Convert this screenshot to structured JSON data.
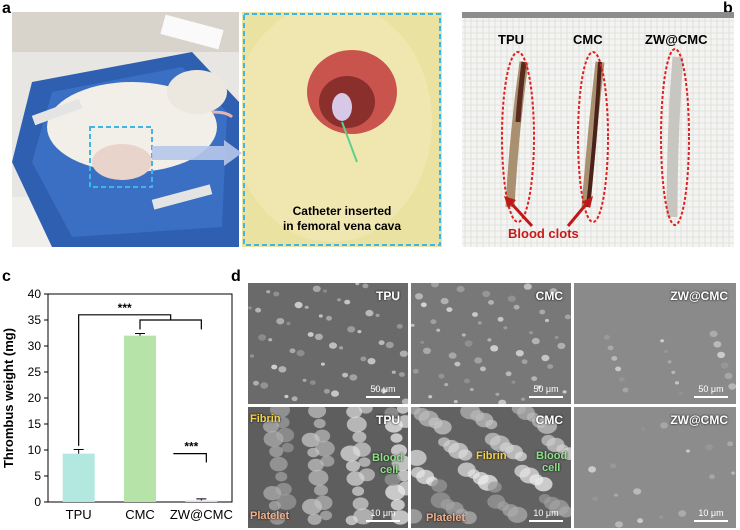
{
  "panels": {
    "a": {
      "letter": "a",
      "callout_line1": "Catheter inserted",
      "callout_line2": "in femoral vena cava"
    },
    "b": {
      "letter": "b",
      "labels": [
        "TPU",
        "CMC",
        "ZW@CMC"
      ],
      "annotation": "Blood clots"
    },
    "c": {
      "letter": "c"
    },
    "d": {
      "letter": "d",
      "tiles": [
        {
          "label": "TPU",
          "scale": "50 μm"
        },
        {
          "label": "CMC",
          "scale": "50 μm"
        },
        {
          "label": "ZW@CMC",
          "scale": "50 μm"
        },
        {
          "label": "TPU",
          "scale": "10 μm"
        },
        {
          "label": "CMC",
          "scale": "10 μm"
        },
        {
          "label": "ZW@CMC",
          "scale": "10 μm"
        }
      ],
      "ann_fibrin": "Fibrin",
      "ann_blood": "Blood",
      "ann_cell": "cell",
      "ann_platelet": "Platelet"
    }
  },
  "chart_data": {
    "type": "bar",
    "categories": [
      "TPU",
      "CMC",
      "ZW@CMC"
    ],
    "values": [
      9.3,
      32.0,
      0.3
    ],
    "errors": [
      0.8,
      0.4,
      0.3
    ],
    "colors": [
      "#b3e8e0",
      "#b5e3a8",
      "#e8d7f0"
    ],
    "ylabel": "Thrombus weight (mg)",
    "xlabel": "",
    "ylim": [
      0,
      40
    ],
    "yticks": [
      0,
      5,
      10,
      15,
      20,
      25,
      30,
      35,
      40
    ],
    "significance": [
      "***",
      "***"
    ]
  }
}
